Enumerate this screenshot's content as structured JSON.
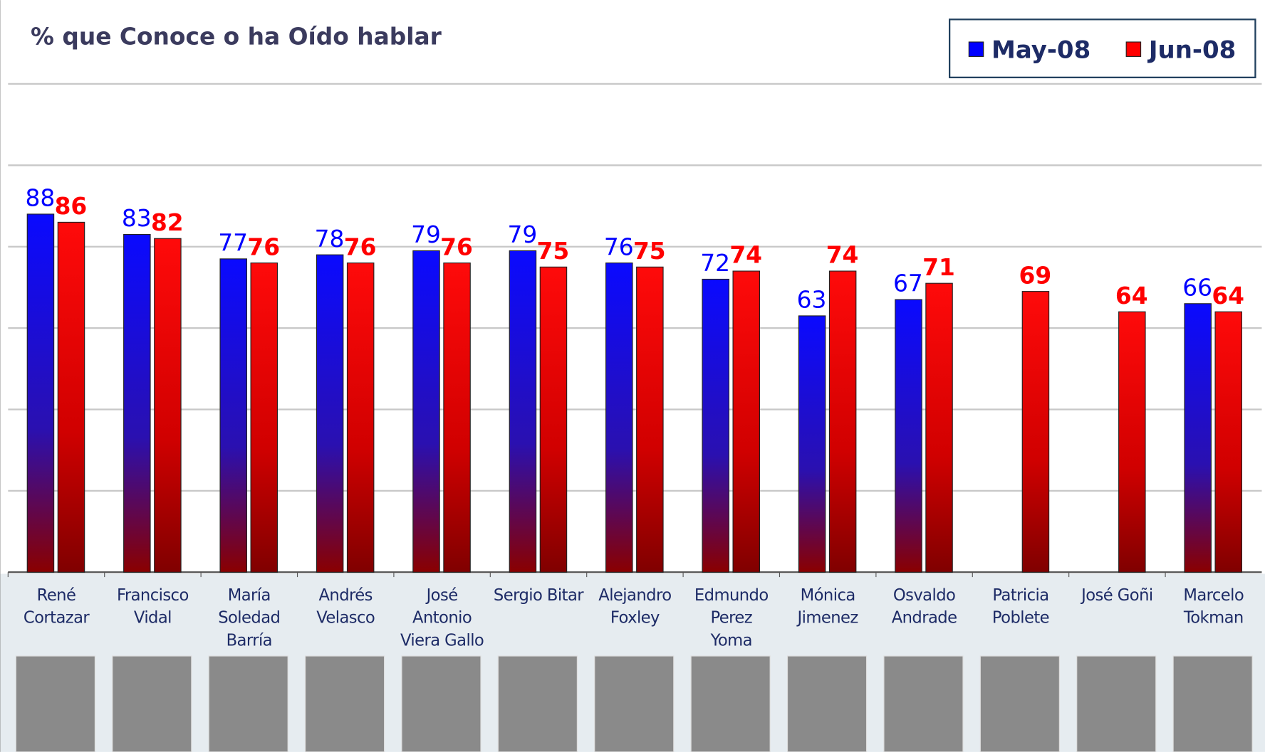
{
  "chart_data": {
    "type": "bar",
    "title": "% que Conoce o ha Oído hablar",
    "categories": [
      "René\nCortazar",
      "Francisco\nVidal",
      "María\nSoledad\nBarría",
      "Andrés\nVelasco",
      "José\nAntonio\nViera Gallo",
      "Sergio Bitar",
      "Alejandro\nFoxley",
      "Edmundo\nPerez\nYoma",
      "Mónica\nJimenez",
      "Osvaldo\nAndrade",
      "Patricia\nPoblete",
      "José Goñi",
      "Marcelo\nTokman"
    ],
    "series": [
      {
        "name": "May-08",
        "color": "#0000ff",
        "values": [
          88,
          83,
          77,
          78,
          79,
          79,
          76,
          72,
          63,
          67,
          null,
          null,
          66
        ]
      },
      {
        "name": "Jun-08",
        "color": "#ff0000",
        "values": [
          86,
          82,
          76,
          76,
          76,
          75,
          75,
          74,
          74,
          71,
          69,
          64,
          64
        ]
      }
    ],
    "ylim": [
      0,
      120
    ],
    "yticks": [
      0,
      20,
      40,
      60,
      80,
      100
    ],
    "grid": true
  }
}
